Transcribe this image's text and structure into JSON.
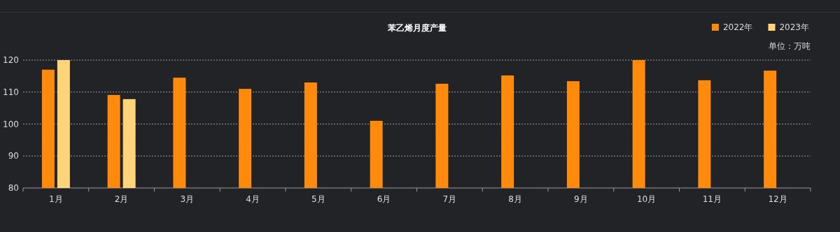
{
  "chart_data": {
    "type": "bar",
    "title": "苯乙烯月度产量",
    "annotations": [
      "单位：万吨"
    ],
    "categories": [
      "1月",
      "2月",
      "3月",
      "4月",
      "5月",
      "6月",
      "7月",
      "8月",
      "9月",
      "10月",
      "11月",
      "12月"
    ],
    "series": [
      {
        "name": "2022年",
        "color": "#ff8a0c",
        "values": [
          117,
          109.1,
          114.5,
          111,
          113,
          101,
          112.6,
          115.2,
          113.4,
          120,
          113.7,
          116.7
        ]
      },
      {
        "name": "2023年",
        "color": "#ffd47a",
        "values": [
          120,
          107.8,
          null,
          null,
          null,
          null,
          null,
          null,
          null,
          null,
          null,
          null
        ]
      }
    ],
    "ylim": [
      80,
      120
    ],
    "yticks": [
      80,
      90,
      100,
      110,
      120
    ],
    "grid": "y",
    "legend": "top right"
  }
}
